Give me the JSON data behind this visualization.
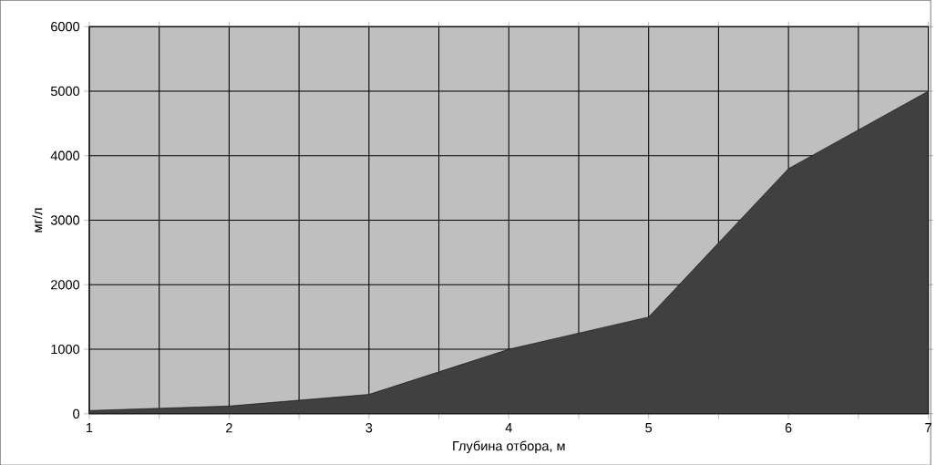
{
  "chart_data": {
    "type": "area",
    "xlabel": "Глубина отбора, м",
    "ylabel": "мг/л",
    "x": [
      1,
      2,
      3,
      4,
      5,
      6,
      7
    ],
    "series": [
      {
        "color": "#404040",
        "values": [
          50,
          120,
          300,
          1000,
          1500,
          3800,
          5000
        ]
      }
    ],
    "xlim": [
      1,
      7
    ],
    "ylim": [
      0,
      6000
    ],
    "xticks": [
      1,
      {
        "value": 1.5,
        "label": null
      },
      2,
      {
        "value": 2.5,
        "label": null
      },
      3,
      {
        "value": 3.5,
        "label": null
      },
      4,
      {
        "value": 4.5,
        "label": null
      },
      5,
      {
        "value": 5.5,
        "label": null
      },
      6,
      {
        "value": 6.5,
        "label": null
      },
      7
    ],
    "yticks": [
      0,
      1000,
      2000,
      3000,
      4000,
      5000,
      6000
    ],
    "grid": true
  }
}
